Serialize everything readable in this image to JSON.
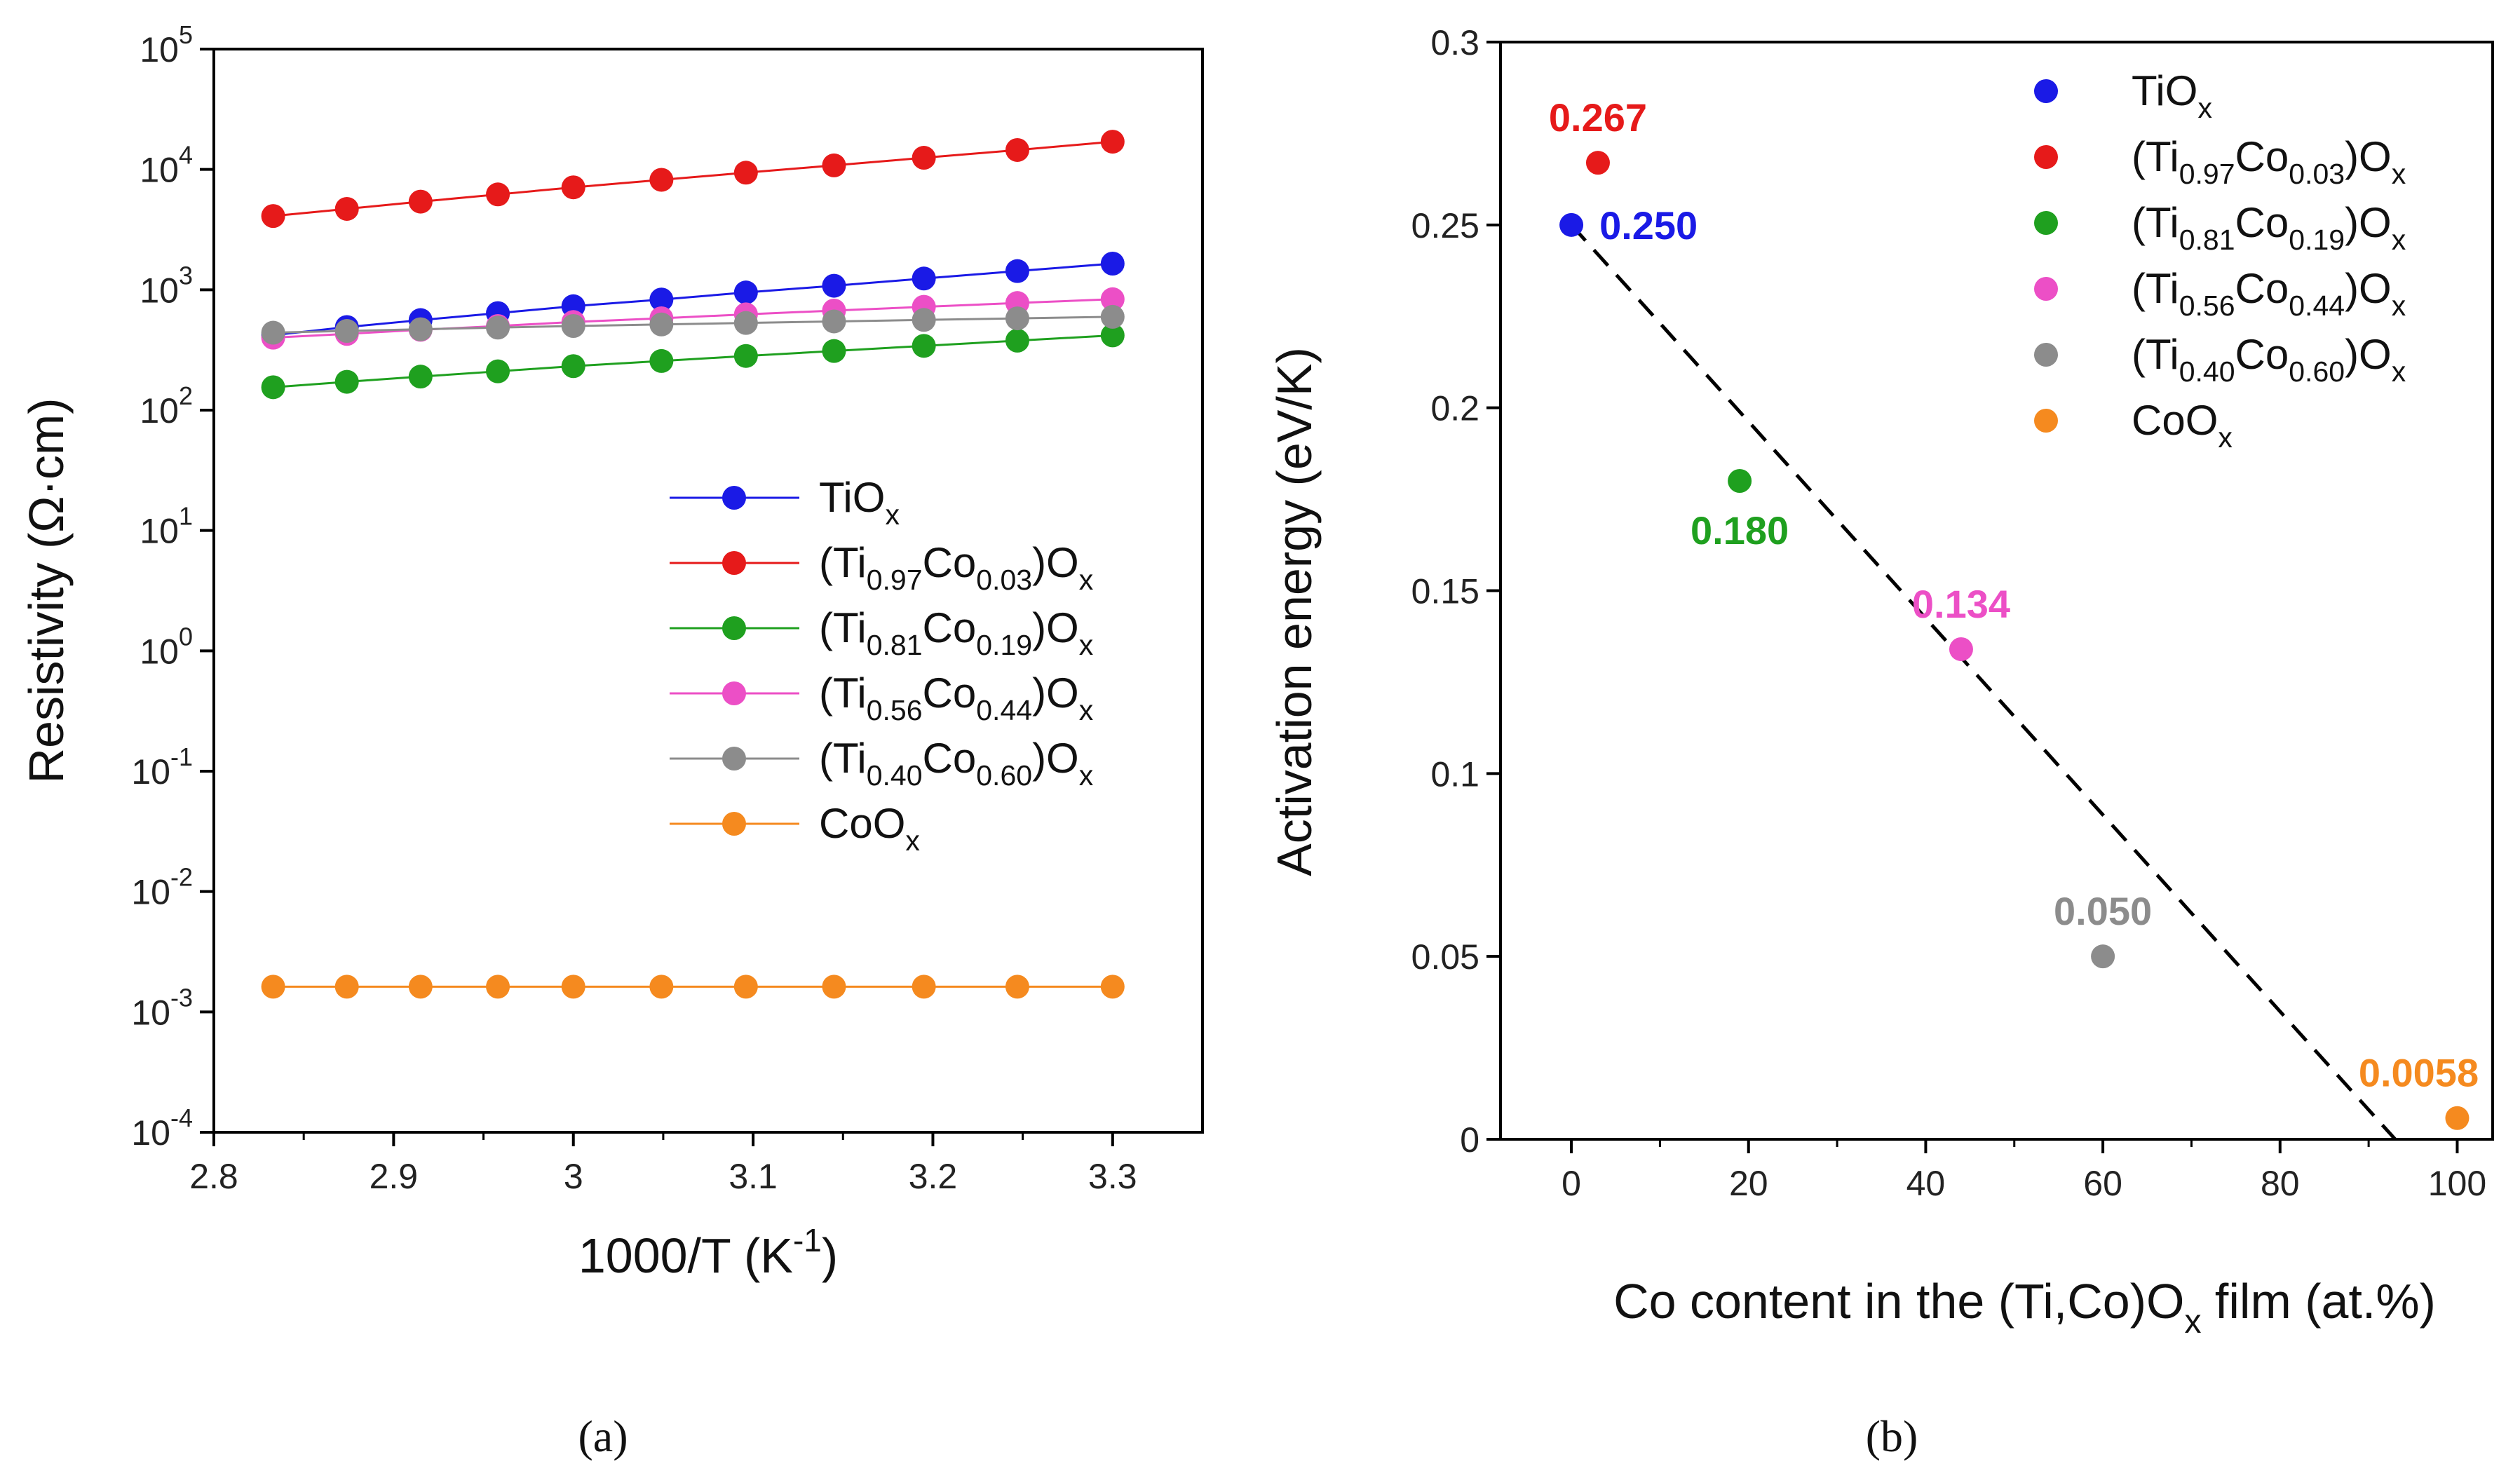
{
  "chart_data": [
    {
      "panel": "a",
      "type": "line",
      "y_scale": "log",
      "caption": "(a)",
      "xlabel": "1000/T (K",
      "xlabel_sup": "-1",
      "xlabel_end": ")",
      "ylabel": "Resistivity (Ω·cm)",
      "xlim": [
        2.8,
        3.35
      ],
      "ylim_exponents": [
        -4,
        5
      ],
      "x_ticks": [
        2.8,
        2.9,
        3.0,
        3.1,
        3.2,
        3.3
      ],
      "x_tick_labels": [
        "2.8",
        "2.9",
        "3",
        "3.1",
        "3.2",
        "3.3"
      ],
      "y_tick_base": "10",
      "y_tick_exponents": [
        "-4",
        "-3",
        "-2",
        "-1",
        "0",
        "1",
        "2",
        "3",
        "4",
        "5"
      ],
      "x": [
        2.833,
        2.874,
        2.915,
        2.958,
        3.0,
        3.049,
        3.096,
        3.145,
        3.195,
        3.247,
        3.3
      ],
      "series": [
        {
          "key": "tio",
          "name": "TiOx",
          "color": "#1a1ae6",
          "values": [
            420,
            490,
            560,
            640,
            730,
            830,
            950,
            1080,
            1240,
            1430,
            1650
          ]
        },
        {
          "key": "ti97",
          "name": "(Ti0.97Co0.03)Ox",
          "color": "#e61a1a",
          "values": [
            4100,
            4700,
            5400,
            6200,
            7100,
            8200,
            9400,
            10800,
            12500,
            14500,
            17000
          ]
        },
        {
          "key": "ti81",
          "name": "(Ti0.81Co0.19)Ox",
          "color": "#1fa01f",
          "values": [
            155,
            172,
            190,
            210,
            232,
            256,
            282,
            310,
            342,
            378,
            418
          ]
        },
        {
          "key": "ti56",
          "name": "(Ti0.56Co0.44)Ox",
          "color": "#ec4fc6",
          "values": [
            400,
            430,
            465,
            500,
            540,
            580,
            625,
            672,
            722,
            777,
            835
          ]
        },
        {
          "key": "ti40",
          "name": "(Ti0.40Co0.60)Ox",
          "color": "#8c8c8c",
          "values": [
            440,
            455,
            470,
            485,
            500,
            515,
            530,
            546,
            562,
            579,
            596
          ]
        },
        {
          "key": "coo",
          "name": "CoOx",
          "color": "#f58a1f",
          "values": [
            0.00162,
            0.00162,
            0.00162,
            0.00162,
            0.00162,
            0.00162,
            0.00162,
            0.00162,
            0.00162,
            0.00162,
            0.00162
          ]
        }
      ],
      "legend": {
        "placement": "center-right",
        "entries": [
          {
            "key": "tio",
            "parts": [
              {
                "t": "TiO"
              },
              {
                "t": "x",
                "sub": true
              }
            ]
          },
          {
            "key": "ti97",
            "parts": [
              {
                "t": "(Ti"
              },
              {
                "t": "0.97",
                "sub": true
              },
              {
                "t": "Co"
              },
              {
                "t": "0.03",
                "sub": true
              },
              {
                "t": ")O"
              },
              {
                "t": "x",
                "sub": true
              }
            ]
          },
          {
            "key": "ti81",
            "parts": [
              {
                "t": "(Ti"
              },
              {
                "t": "0.81",
                "sub": true
              },
              {
                "t": "Co"
              },
              {
                "t": "0.19",
                "sub": true
              },
              {
                "t": ")O"
              },
              {
                "t": "x",
                "sub": true
              }
            ]
          },
          {
            "key": "ti56",
            "parts": [
              {
                "t": "(Ti"
              },
              {
                "t": "0.56",
                "sub": true
              },
              {
                "t": "Co"
              },
              {
                "t": "0.44",
                "sub": true
              },
              {
                "t": ")O"
              },
              {
                "t": "x",
                "sub": true
              }
            ]
          },
          {
            "key": "ti40",
            "parts": [
              {
                "t": "(Ti"
              },
              {
                "t": "0.40",
                "sub": true
              },
              {
                "t": "Co"
              },
              {
                "t": "0.60",
                "sub": true
              },
              {
                "t": ")O"
              },
              {
                "t": "x",
                "sub": true
              }
            ]
          },
          {
            "key": "coo",
            "parts": [
              {
                "t": "CoO"
              },
              {
                "t": "x",
                "sub": true
              }
            ]
          }
        ]
      }
    },
    {
      "panel": "b",
      "type": "scatter",
      "caption": "(b)",
      "xlabel_parts": [
        {
          "t": "Co content in the (Ti,Co)O"
        },
        {
          "t": "x",
          "sub": true
        },
        {
          "t": " film (at.%)"
        }
      ],
      "ylabel": "Activation energy (eV/K)",
      "xlim": [
        -8,
        104
      ],
      "ylim": [
        0,
        0.3
      ],
      "x_ticks": [
        0,
        20,
        40,
        60,
        80,
        100
      ],
      "x_tick_labels": [
        "0",
        "20",
        "40",
        "60",
        "80",
        "100"
      ],
      "y_ticks": [
        0,
        0.05,
        0.1,
        0.15,
        0.2,
        0.25,
        0.3
      ],
      "y_tick_labels": [
        "0",
        "0.05",
        "0.1",
        "0.15",
        "0.2",
        "0.25",
        "0.3"
      ],
      "points": [
        {
          "key": "tio",
          "name": "TiOx",
          "x": 0,
          "y": 0.25,
          "label": "0.250",
          "label_pos": "right",
          "color": "#1a1ae6"
        },
        {
          "key": "ti97",
          "name": "(Ti0.97Co0.03)Ox",
          "x": 3,
          "y": 0.267,
          "label": "0.267",
          "label_pos": "above",
          "color": "#e61a1a"
        },
        {
          "key": "ti81",
          "name": "(Ti0.81Co0.19)Ox",
          "x": 19,
          "y": 0.18,
          "label": "0.180",
          "label_pos": "below",
          "color": "#1fa01f"
        },
        {
          "key": "ti56",
          "name": "(Ti0.56Co0.44)Ox",
          "x": 44,
          "y": 0.134,
          "label": "0.134",
          "label_pos": "above",
          "color": "#ec4fc6"
        },
        {
          "key": "ti40",
          "name": "(Ti0.40Co0.60)Ox",
          "x": 60,
          "y": 0.05,
          "label": "0.050",
          "label_pos": "above",
          "color": "#8c8c8c"
        },
        {
          "key": "coo",
          "name": "CoOx",
          "x": 100,
          "y": 0.0058,
          "label": "0.0058",
          "label_pos": "above",
          "color": "#f58a1f"
        }
      ],
      "fit_line": {
        "style": "dashed",
        "x": [
          0,
          93
        ],
        "y": [
          0.25,
          0.0
        ]
      },
      "legend": {
        "placement": "top-right",
        "entries": [
          {
            "key": "tio",
            "parts": [
              {
                "t": "TiO"
              },
              {
                "t": "x",
                "sub": true
              }
            ]
          },
          {
            "key": "ti97",
            "parts": [
              {
                "t": "(Ti"
              },
              {
                "t": "0.97",
                "sub": true
              },
              {
                "t": "Co"
              },
              {
                "t": "0.03",
                "sub": true
              },
              {
                "t": ")O"
              },
              {
                "t": "x",
                "sub": true
              }
            ]
          },
          {
            "key": "ti81",
            "parts": [
              {
                "t": "(Ti"
              },
              {
                "t": "0.81",
                "sub": true
              },
              {
                "t": "Co"
              },
              {
                "t": "0.19",
                "sub": true
              },
              {
                "t": ")O"
              },
              {
                "t": "x",
                "sub": true
              }
            ]
          },
          {
            "key": "ti56",
            "parts": [
              {
                "t": "(Ti"
              },
              {
                "t": "0.56",
                "sub": true
              },
              {
                "t": "Co"
              },
              {
                "t": "0.44",
                "sub": true
              },
              {
                "t": ")O"
              },
              {
                "t": "x",
                "sub": true
              }
            ]
          },
          {
            "key": "ti40",
            "parts": [
              {
                "t": "(Ti"
              },
              {
                "t": "0.40",
                "sub": true
              },
              {
                "t": "Co"
              },
              {
                "t": "0.60",
                "sub": true
              },
              {
                "t": ")O"
              },
              {
                "t": "x",
                "sub": true
              }
            ]
          },
          {
            "key": "coo",
            "parts": [
              {
                "t": "CoO"
              },
              {
                "t": "x",
                "sub": true
              }
            ]
          }
        ]
      }
    }
  ]
}
